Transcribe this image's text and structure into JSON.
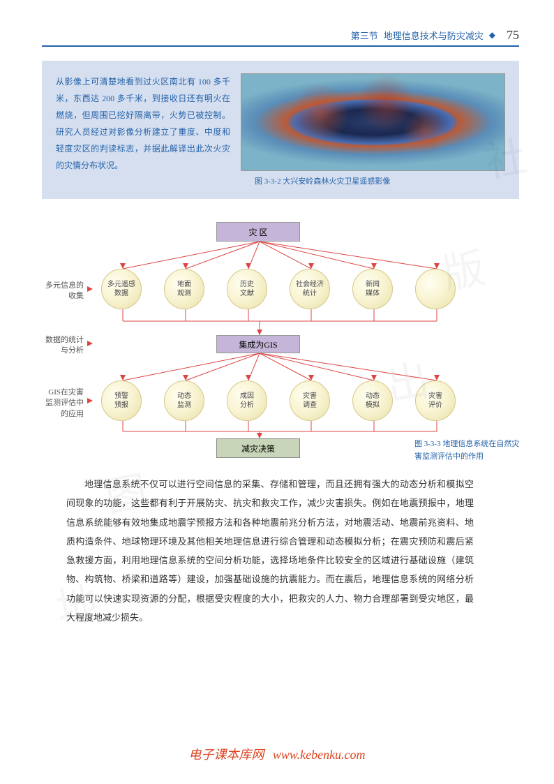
{
  "header": {
    "section": "第三节",
    "title": "地理信息技术与防灾减灾",
    "pageNum": "75",
    "lineColor": "#2462a8"
  },
  "infoBox": {
    "text": "从影像上可清楚地看到过火区南北有 100 多千米，东西达 200 多千米，到接收日还有明火在燃烧，但周围已挖好隔离带，火势已被控制。研究人员经过对影像分析建立了重度、中度和轻度灾区的判读标志，并据此解译出此次火灾的灾情分布状况。",
    "imgCaption": "图 3-3-2  大兴安岭森林火灾卫星遥感影像",
    "bgColor": "#d5dff0",
    "textColor": "#2462a8"
  },
  "diagram": {
    "caption": "图 3-3-3  地理信息系统在自然灾害监测评估中的作用",
    "topBox": "灾    区",
    "midBox": "集成为GIS",
    "botBox": "减灾决策",
    "row1": [
      "多元遥感\n数据",
      "地面\n观测",
      "历史\n文献",
      "社会经济\n统计",
      "新闻\n媒体",
      ""
    ],
    "row2": [
      "预警\n预报",
      "动态\n监测",
      "成因\n分析",
      "灾害\n调查",
      "动态\n模拟",
      "灾害\n评价"
    ],
    "labels": {
      "l1": "多元信息的收集",
      "l2": "数据的统计与分析",
      "l3": "GIS在灾害监测评估中的应用"
    },
    "colors": {
      "boxPurple": "#c5b5d8",
      "boxDecision": "#c9d5b8",
      "circleFill": "#f8f3d0",
      "lineColor": "#d44",
      "arrowColor": "#d44"
    },
    "layout": {
      "circleSize": 58,
      "row1Y": 75,
      "row2Y": 235,
      "circleXs": [
        85,
        175,
        265,
        355,
        445,
        535
      ],
      "topBoxY": 8,
      "midBoxY": 170,
      "botBoxY": 318
    }
  },
  "bodyText": "地理信息系统不仅可以进行空间信息的采集、存储和管理，而且还拥有强大的动态分析和模拟空间现象的功能，这些都有利于开展防灾、抗灾和救灾工作，减少灾害损失。例如在地震预报中，地理信息系统能够有效地集成地震学预报方法和各种地震前兆分析方法，对地震活动、地震前兆资料、地质构造条件、地球物理环境及其他相关地理信息进行综合管理和动态模拟分析；在震灾预防和震后紧急救援方面，利用地理信息系统的空间分析功能，选择场地条件比较安全的区域进行基础设施（建筑物、构筑物、桥梁和道路等）建设，加强基础设施的抗震能力。而在震后，地理信息系统的网络分析功能可以快速实现资源的分配，根据受灾程度的大小，把救灾的人力、物力合理部署到受灾地区，最大程度地减少损失。",
  "watermarks": [
    "社",
    "版",
    "出",
    "图",
    "地",
    "国",
    "中"
  ],
  "footer": {
    "text": "电子课本库网",
    "link": "www.kebenku.com"
  }
}
